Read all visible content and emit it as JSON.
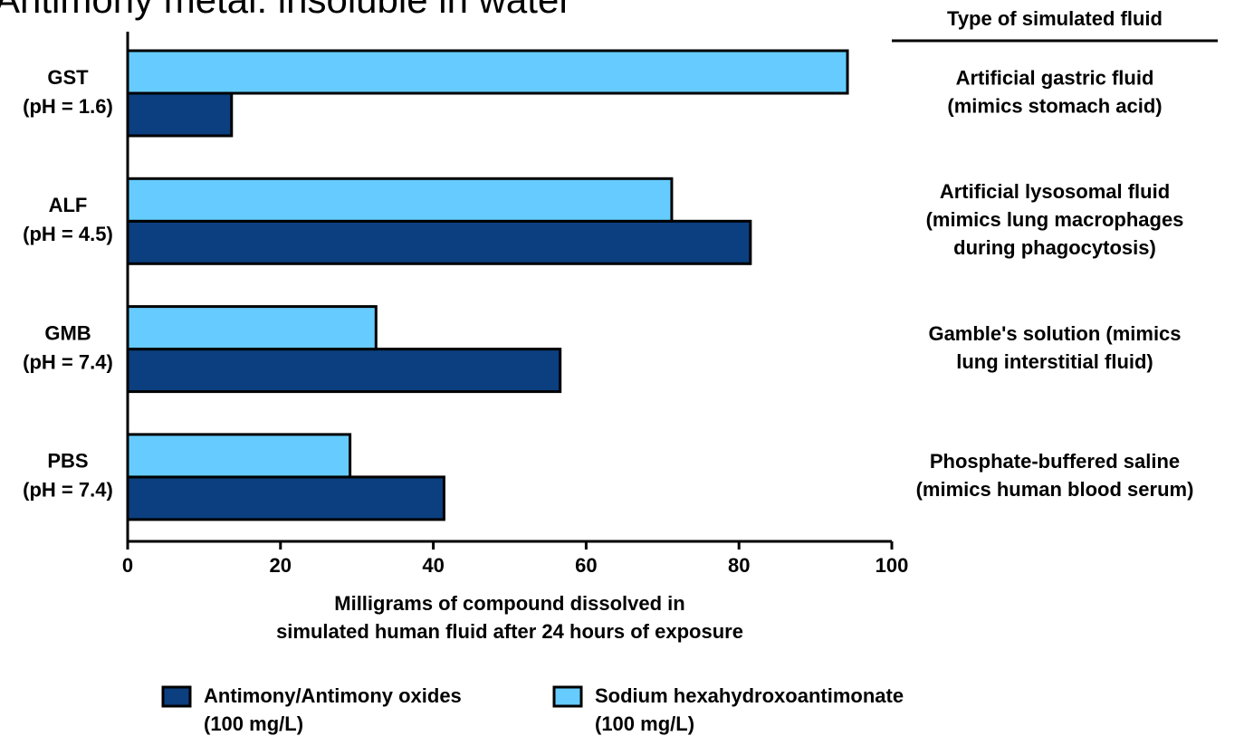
{
  "chart_data": {
    "type": "barh",
    "title": "Antimony metal: insoluble in water",
    "categories": [
      [
        "GST",
        "(pH = 1.6)"
      ],
      [
        "ALF",
        "(pH = 4.5)"
      ],
      [
        "GMB",
        "(pH = 7.4)"
      ],
      [
        "PBS",
        "(pH = 7.4)"
      ]
    ],
    "series": [
      {
        "name": [
          "Antimony/Antimony oxides",
          "(100 mg/L)"
        ],
        "color": "#0b3f7f",
        "values": [
          13.6,
          81.5,
          56.6,
          41.4
        ]
      },
      {
        "name": [
          "Sodium hexahydroxoantimonate",
          "(100 mg/L)"
        ],
        "color": "#66ccff",
        "values": [
          94.2,
          71.2,
          32.5,
          29.1
        ]
      }
    ],
    "xlim": [
      0,
      100
    ],
    "xticks": [
      0,
      20,
      40,
      60,
      80,
      100
    ],
    "xlabel": [
      "Milligrams of compound dissolved in",
      "simulated human fluid after 24 hours of exposure"
    ],
    "annotation_header": "Type of simulated fluid",
    "annotations": [
      [
        "Artificial gastric fluid",
        "(mimics stomach acid)"
      ],
      [
        "Artificial lysosomal fluid",
        "(mimics lung macrophages",
        "during phagocytosis)"
      ],
      [
        "Gamble's solution (mimics",
        "lung interstitial fluid)"
      ],
      [
        "Phosphate-buffered saline",
        "(mimics human blood serum)"
      ]
    ],
    "legend": "bottom"
  }
}
